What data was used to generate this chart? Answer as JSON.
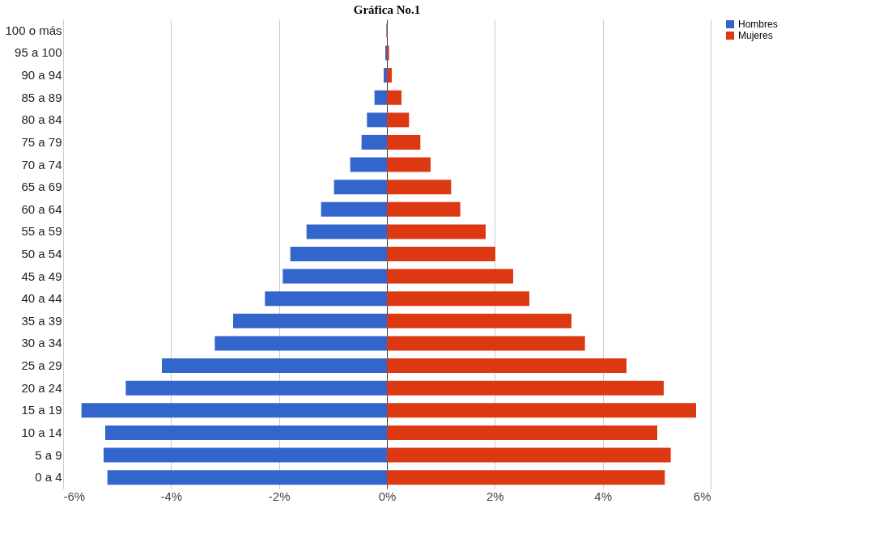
{
  "chart_data": {
    "type": "bar",
    "title": "Gráfica No.1",
    "orientation": "horizontal",
    "stacked": true,
    "categories": [
      "100 o más",
      "95 a 100",
      "90 a 94",
      "85 a 89",
      "80 a 84",
      "75 a 79",
      "70 a 74",
      "65 a 69",
      "60 a 64",
      "55 a 59",
      "50 a 54",
      "45 a 49",
      "40 a 44",
      "35 a 39",
      "30 a 34",
      "25 a 29",
      "20 a 24",
      "15 a 19",
      "10 a 14",
      "5 a 9",
      "0 a 4"
    ],
    "series": [
      {
        "name": "Hombres",
        "color": "#3366cc",
        "values": [
          -0.01,
          -0.03,
          -0.06,
          -0.23,
          -0.37,
          -0.47,
          -0.68,
          -0.98,
          -1.22,
          -1.49,
          -1.79,
          -1.93,
          -2.26,
          -2.85,
          -3.19,
          -4.17,
          -4.84,
          -5.66,
          -5.22,
          -5.25,
          -5.18
        ]
      },
      {
        "name": "Mujeres",
        "color": "#dc3912",
        "values": [
          0.01,
          0.04,
          0.09,
          0.27,
          0.41,
          0.62,
          0.81,
          1.19,
          1.36,
          1.83,
          2.01,
          2.34,
          2.64,
          3.42,
          3.67,
          4.44,
          5.13,
          5.73,
          5.01,
          5.26,
          5.15
        ]
      }
    ],
    "xlim": [
      -6,
      6
    ],
    "xticks": [
      {
        "value": -6,
        "label": "-6%"
      },
      {
        "value": -4,
        "label": "-4%"
      },
      {
        "value": -2,
        "label": "-2%"
      },
      {
        "value": 0,
        "label": "0%"
      },
      {
        "value": 2,
        "label": "2%"
      },
      {
        "value": 4,
        "label": "4%"
      },
      {
        "value": 6,
        "label": "6%"
      }
    ],
    "grid": "x",
    "legend": "top right"
  }
}
